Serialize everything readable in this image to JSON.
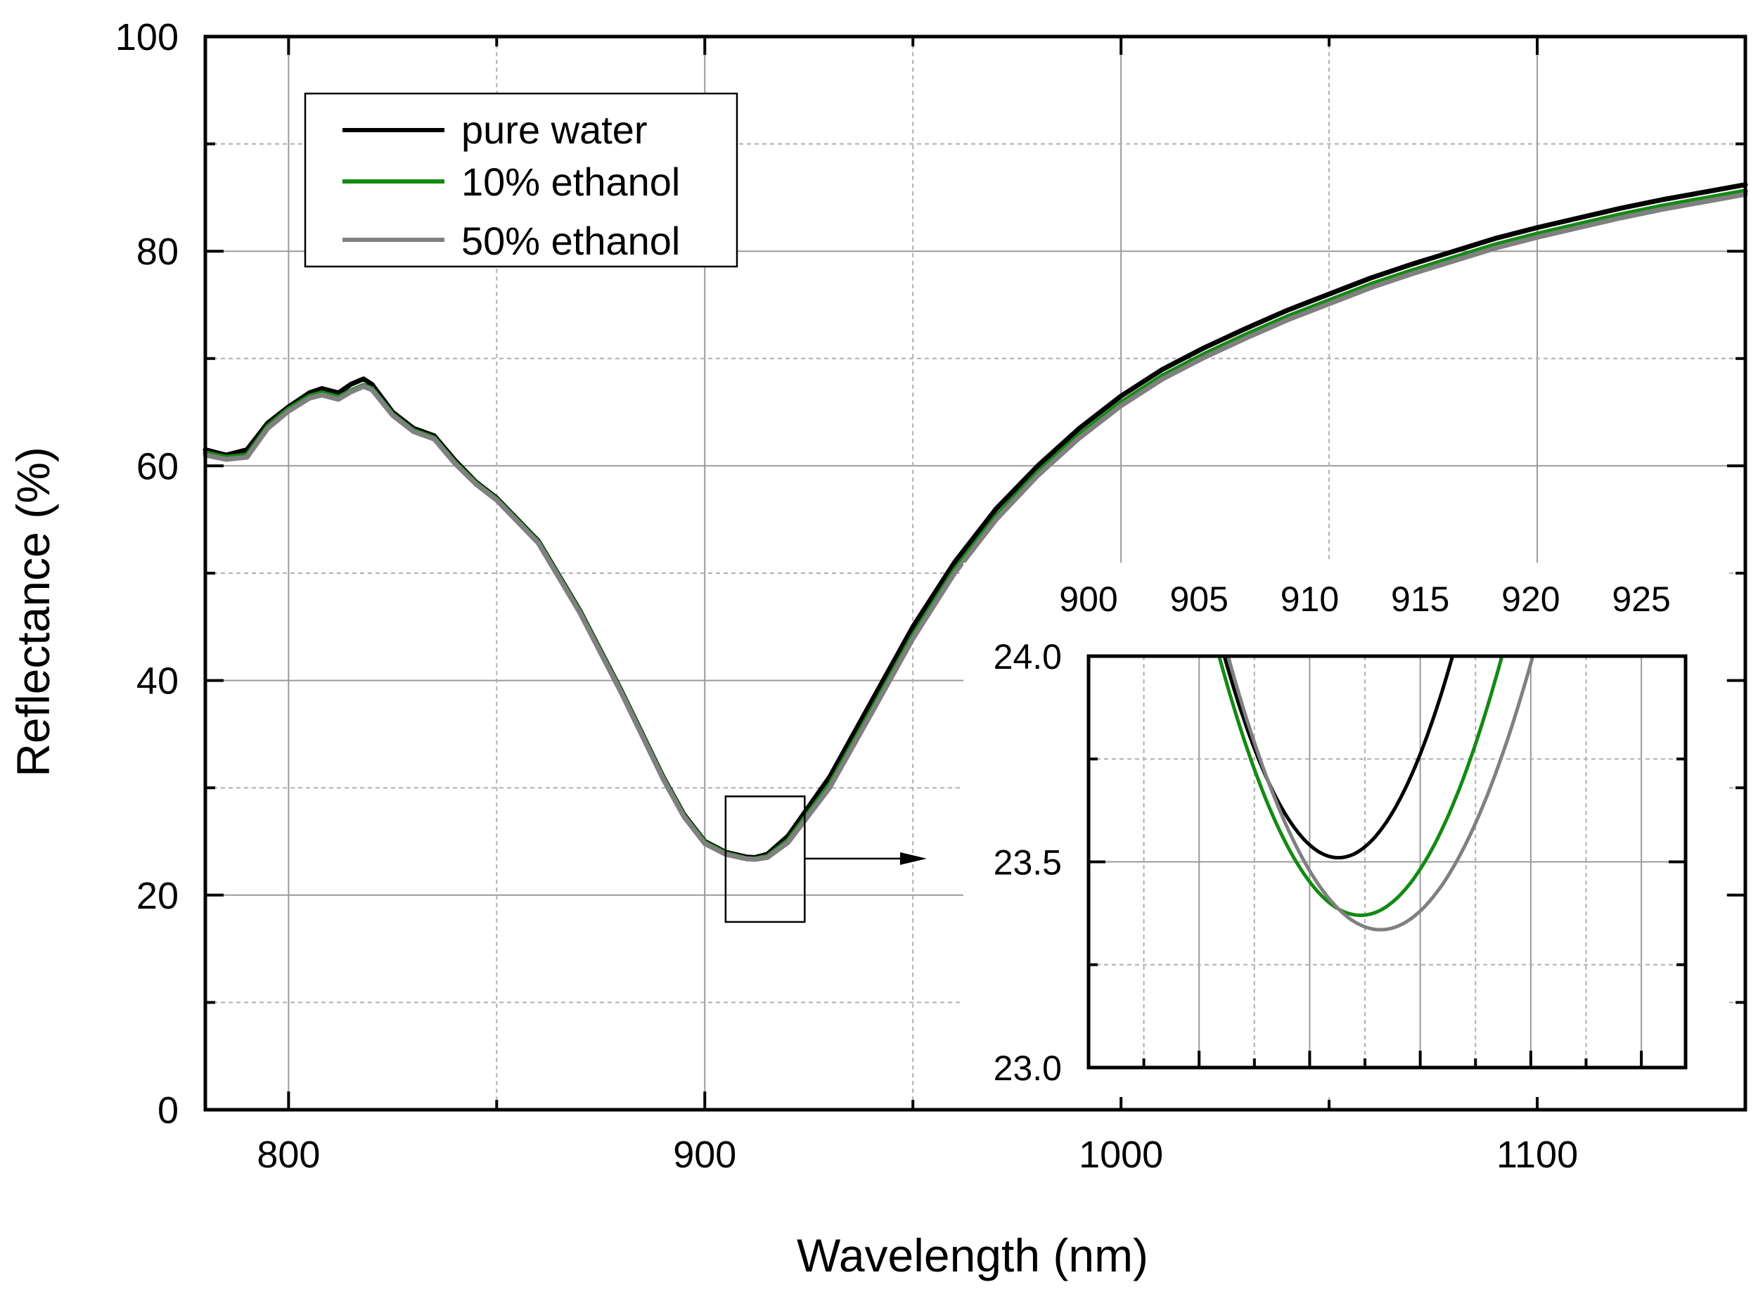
{
  "chart_data": [
    {
      "type": "line",
      "name": "main",
      "xlabel": "Wavelength (nm)",
      "ylabel": "Reflectance (%)",
      "xlim": [
        780,
        1150
      ],
      "ylim": [
        0,
        100
      ],
      "xticks": [
        800,
        900,
        1000,
        1100
      ],
      "yticks": [
        0,
        20,
        40,
        60,
        80,
        100
      ],
      "grid": true,
      "legend": {
        "position": "top-left",
        "entries": [
          "pure water",
          "10% ethanol",
          "50% ethanol"
        ]
      },
      "series": [
        {
          "name": "pure water",
          "color": "#000000",
          "x": [
            780,
            785,
            790,
            795,
            800,
            805,
            808,
            812,
            815,
            818,
            820,
            825,
            830,
            835,
            840,
            845,
            850,
            860,
            870,
            880,
            890,
            895,
            900,
            905,
            910,
            912,
            915,
            920,
            930,
            940,
            950,
            960,
            970,
            980,
            990,
            1000,
            1010,
            1020,
            1030,
            1040,
            1050,
            1060,
            1070,
            1080,
            1090,
            1100,
            1110,
            1120,
            1130,
            1140,
            1150
          ],
          "y": [
            61.5,
            61.0,
            61.5,
            64.0,
            65.5,
            66.8,
            67.2,
            66.8,
            67.6,
            68.1,
            67.6,
            65.0,
            63.5,
            62.8,
            60.5,
            58.5,
            57.0,
            53.0,
            46.5,
            39.0,
            31.0,
            27.5,
            25.0,
            24.0,
            23.55,
            23.5,
            23.8,
            25.5,
            31.0,
            38.0,
            45.0,
            51.0,
            56.0,
            60.0,
            63.5,
            66.5,
            69.0,
            71.0,
            72.8,
            74.5,
            76.0,
            77.5,
            78.8,
            80.0,
            81.2,
            82.2,
            83.1,
            84.0,
            84.8,
            85.5,
            86.2
          ]
        },
        {
          "name": "10% ethanol",
          "color": "#138a12",
          "x": [
            780,
            785,
            790,
            795,
            800,
            805,
            808,
            812,
            815,
            818,
            820,
            825,
            830,
            835,
            840,
            845,
            850,
            860,
            870,
            880,
            890,
            895,
            900,
            905,
            910,
            912,
            915,
            920,
            930,
            940,
            950,
            960,
            970,
            980,
            990,
            1000,
            1010,
            1020,
            1030,
            1040,
            1050,
            1060,
            1070,
            1080,
            1090,
            1100,
            1110,
            1120,
            1130,
            1140,
            1150
          ],
          "y": [
            61.2,
            60.8,
            61.0,
            63.7,
            65.3,
            66.5,
            66.8,
            66.4,
            67.0,
            67.5,
            67.2,
            64.8,
            63.3,
            62.6,
            60.3,
            58.4,
            56.9,
            52.9,
            46.4,
            38.9,
            30.9,
            27.4,
            24.9,
            23.9,
            23.4,
            23.37,
            23.6,
            25.1,
            30.3,
            37.2,
            44.2,
            50.3,
            55.3,
            59.4,
            62.9,
            65.9,
            68.4,
            70.4,
            72.2,
            73.9,
            75.4,
            76.9,
            78.2,
            79.4,
            80.6,
            81.6,
            82.5,
            83.4,
            84.2,
            84.9,
            85.6
          ]
        },
        {
          "name": "50% ethanol",
          "color": "#808080",
          "x": [
            780,
            785,
            790,
            795,
            800,
            805,
            808,
            812,
            815,
            818,
            820,
            825,
            830,
            835,
            840,
            845,
            850,
            860,
            870,
            880,
            890,
            895,
            900,
            905,
            910,
            912,
            915,
            920,
            930,
            940,
            950,
            960,
            970,
            980,
            990,
            1000,
            1010,
            1020,
            1030,
            1040,
            1050,
            1060,
            1070,
            1080,
            1090,
            1100,
            1110,
            1120,
            1130,
            1140,
            1150
          ],
          "y": [
            61.0,
            60.6,
            60.8,
            63.5,
            65.1,
            66.3,
            66.6,
            66.2,
            66.9,
            67.4,
            67.1,
            64.7,
            63.2,
            62.5,
            60.2,
            58.3,
            56.8,
            52.8,
            46.3,
            38.8,
            30.8,
            27.3,
            24.8,
            23.8,
            23.38,
            23.33,
            23.5,
            24.9,
            30.0,
            36.9,
            43.9,
            50.0,
            55.0,
            59.1,
            62.6,
            65.6,
            68.1,
            70.1,
            71.9,
            73.6,
            75.1,
            76.6,
            77.9,
            79.1,
            80.3,
            81.3,
            82.2,
            83.1,
            83.9,
            84.6,
            85.3
          ]
        }
      ],
      "zoom_box": {
        "x_range": [
          905,
          924
        ],
        "y_range": [
          17.5,
          29.2
        ]
      }
    },
    {
      "type": "line",
      "name": "inset",
      "xlim": [
        900,
        927
      ],
      "ylim": [
        23.0,
        24.0
      ],
      "xticks": [
        900,
        905,
        910,
        915,
        920,
        925
      ],
      "yticks": [
        23.0,
        23.5,
        24.0
      ],
      "y_tick_labels": [
        "23.0",
        "23.5",
        "24.0"
      ],
      "grid": true,
      "series": [
        {
          "name": "pure water",
          "color": "#000000",
          "min_x": 911.3,
          "min_y": 23.51,
          "k": 0.0184
        },
        {
          "name": "10% ethanol",
          "color": "#138a12",
          "min_x": 912.3,
          "min_y": 23.37,
          "k": 0.0154
        },
        {
          "name": "50% ethanol",
          "color": "#808080",
          "min_x": 913.2,
          "min_y": 23.335,
          "k": 0.014
        }
      ]
    }
  ]
}
